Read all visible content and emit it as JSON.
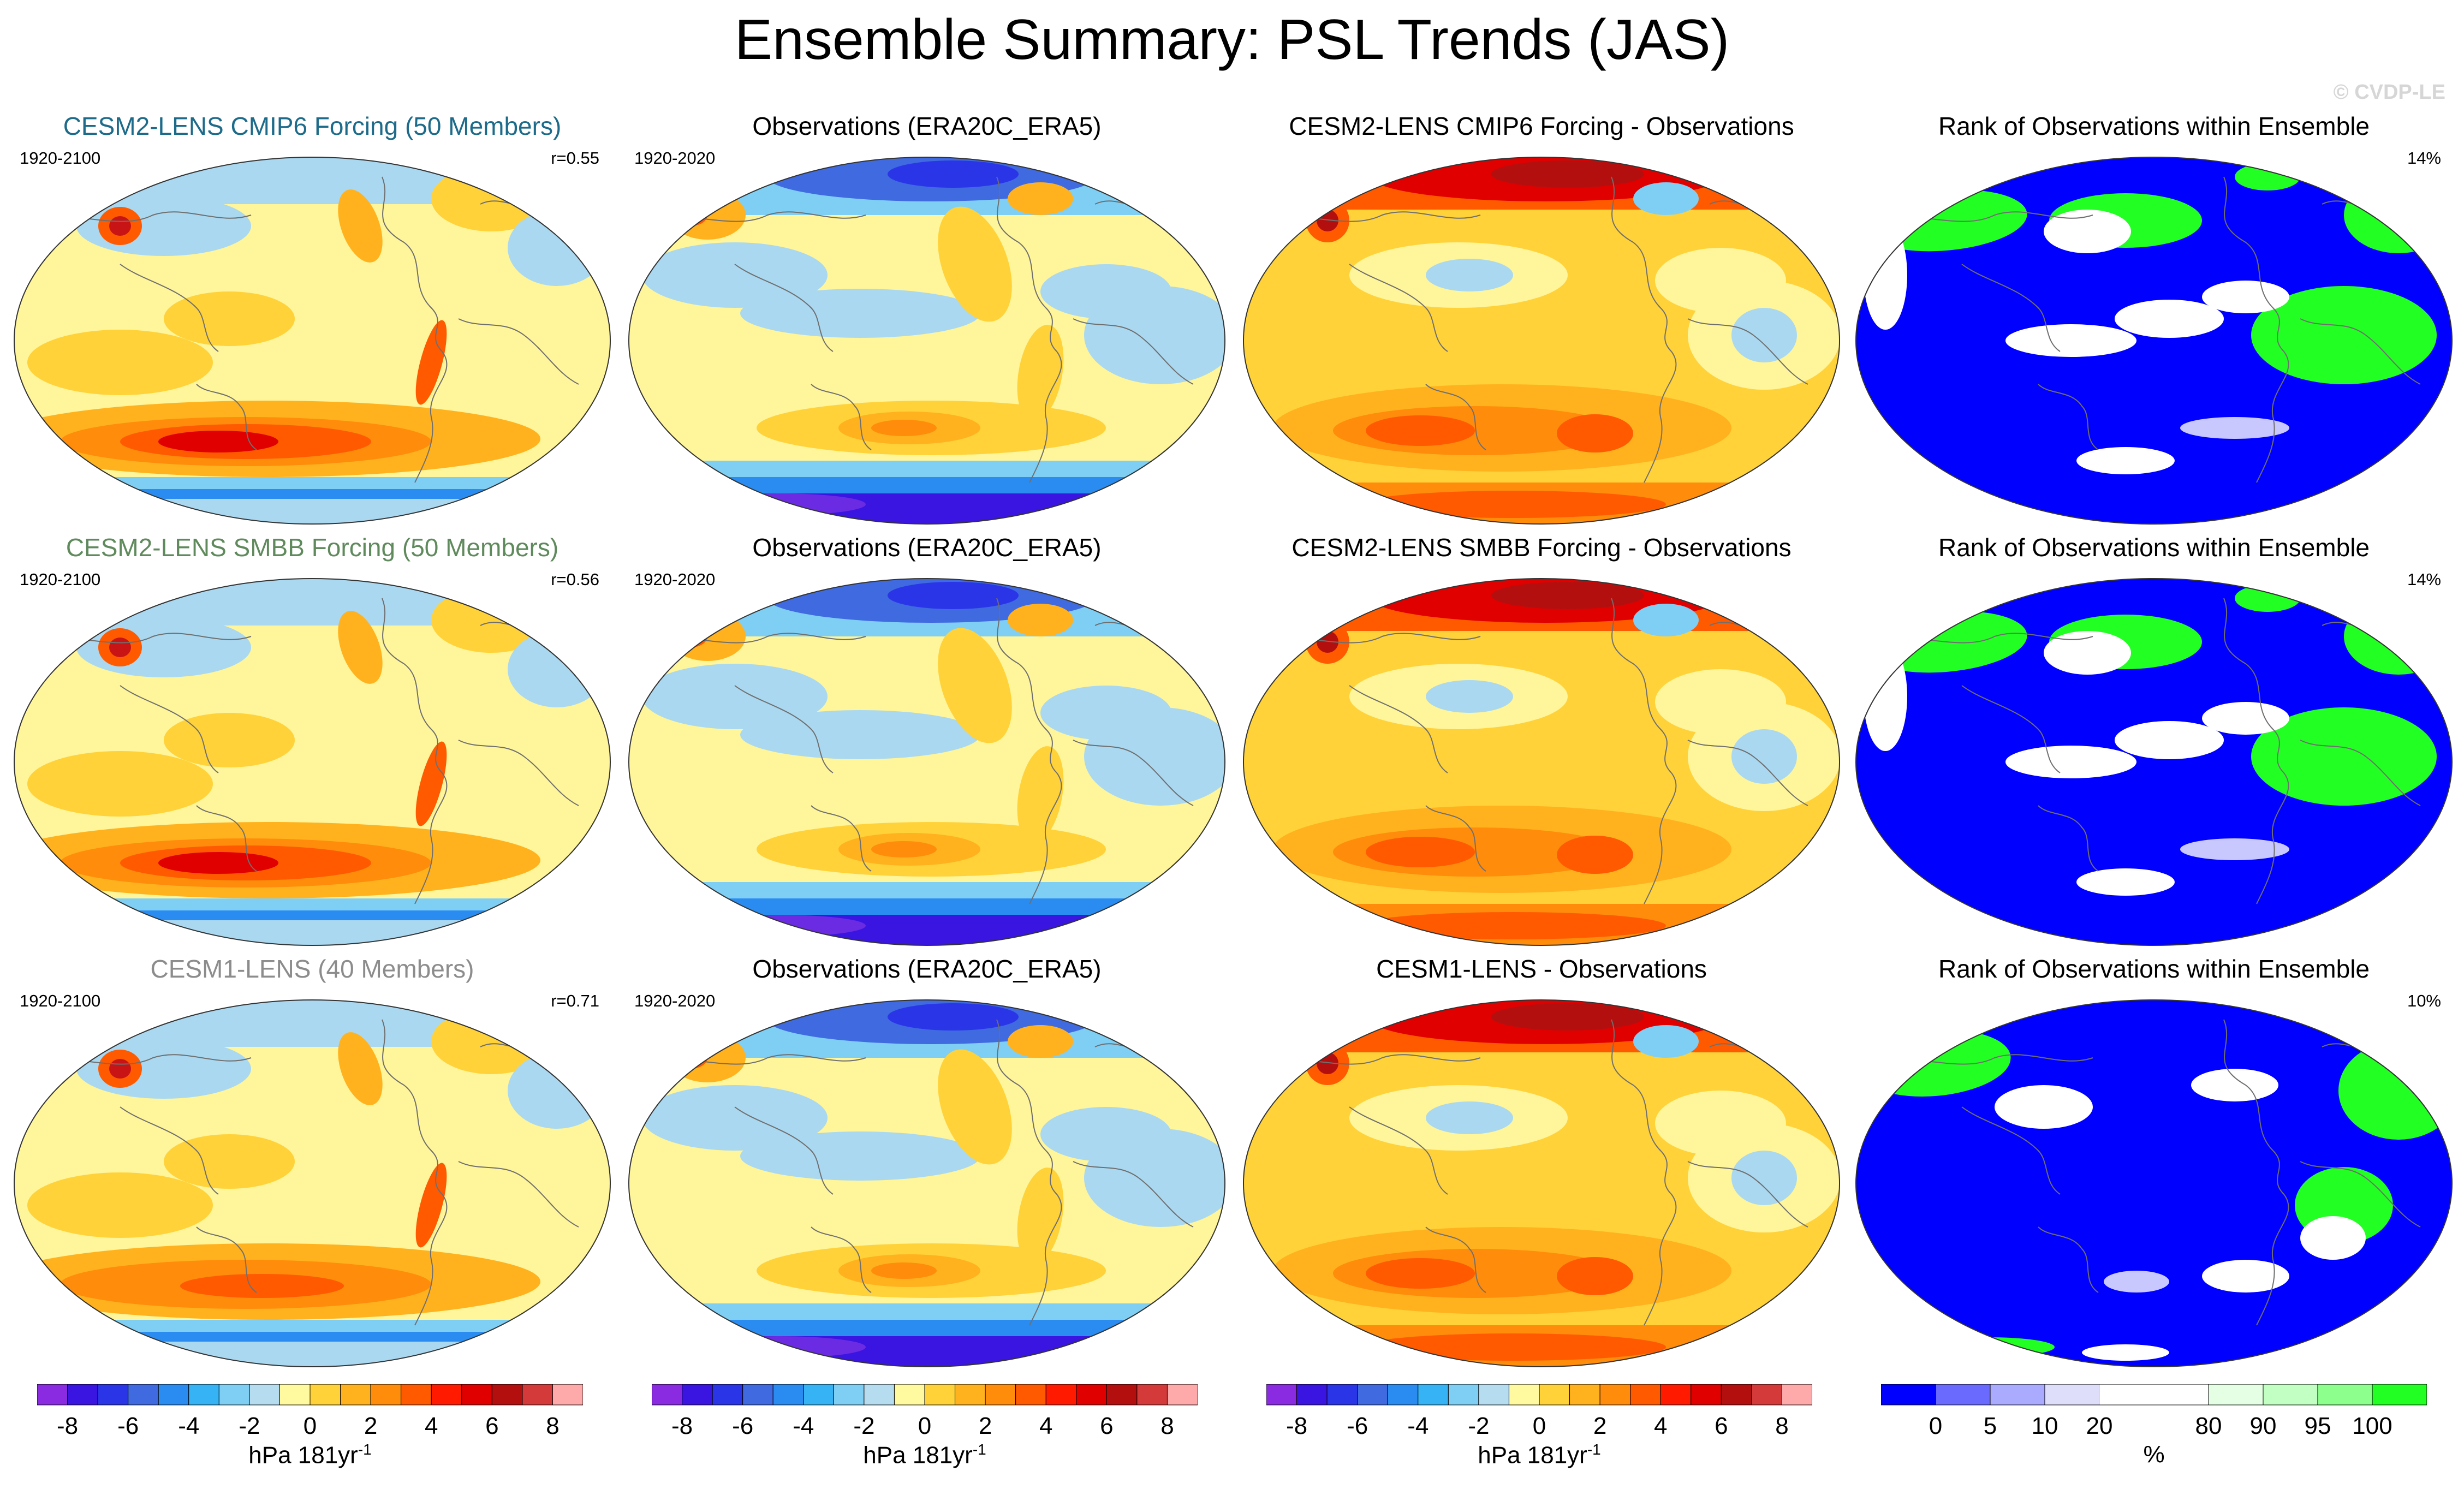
{
  "title": "Ensemble Summary: PSL Trends (JAS)",
  "watermark": "© CVDP-LE",
  "rows": [
    {
      "model": {
        "title": "CESM2-LENS CMIP6 Forcing (50 Members)",
        "title_color": "#1d6b8a",
        "period": "1920-2100",
        "corr": "r=0.55"
      },
      "obs": {
        "title": "Observations (ERA20C_ERA5)",
        "period": "1920-2020"
      },
      "diff": {
        "title": "CESM2-LENS CMIP6 Forcing - Observations"
      },
      "rank": {
        "title": "Rank of Observations within Ensemble",
        "pct": "14%"
      }
    },
    {
      "model": {
        "title": "CESM2-LENS SMBB Forcing (50 Members)",
        "title_color": "#5f8a5c",
        "period": "1920-2100",
        "corr": "r=0.56"
      },
      "obs": {
        "title": "Observations (ERA20C_ERA5)",
        "period": "1920-2020"
      },
      "diff": {
        "title": "CESM2-LENS SMBB Forcing - Observations"
      },
      "rank": {
        "title": "Rank of Observations within Ensemble",
        "pct": "14%"
      }
    },
    {
      "model": {
        "title": "CESM1-LENS (40 Members)",
        "title_color": "#8c8c8c",
        "period": "1920-2100",
        "corr": "r=0.71"
      },
      "obs": {
        "title": "Observations (ERA20C_ERA5)",
        "period": "1920-2020"
      },
      "diff": {
        "title": "CESM1-LENS - Observations"
      },
      "rank": {
        "title": "Rank of Observations within Ensemble",
        "pct": "10%"
      }
    }
  ],
  "psl_colorbar": {
    "colors": [
      "#8a2be2",
      "#3a14e0",
      "#2a35e8",
      "#3f6ae0",
      "#2a8cf0",
      "#35b3f5",
      "#7fcff5",
      "#b6dcf0",
      "#fffaa0",
      "#ffd23a",
      "#ffb21e",
      "#ff8c0a",
      "#ff5a00",
      "#ff1a00",
      "#e00000",
      "#b40f0f",
      "#d43a3a",
      "#ffaaaa"
    ],
    "ticks": [
      "-8",
      "-6",
      "-4",
      "-2",
      "0",
      "2",
      "4",
      "6",
      "8"
    ],
    "label_main": "hPa 181yr",
    "label_sup": "-1"
  },
  "rank_colorbar": {
    "colors": [
      "#0000ff",
      "#6a6aff",
      "#aaaaff",
      "#dedefa",
      "#ffffff",
      "#ffffff",
      "#e4ffe4",
      "#c2ffc2",
      "#8cff8c",
      "#22ff22"
    ],
    "ticks": [
      "0",
      "5",
      "10",
      "20",
      "80",
      "90",
      "95",
      "100"
    ],
    "label": "%"
  }
}
